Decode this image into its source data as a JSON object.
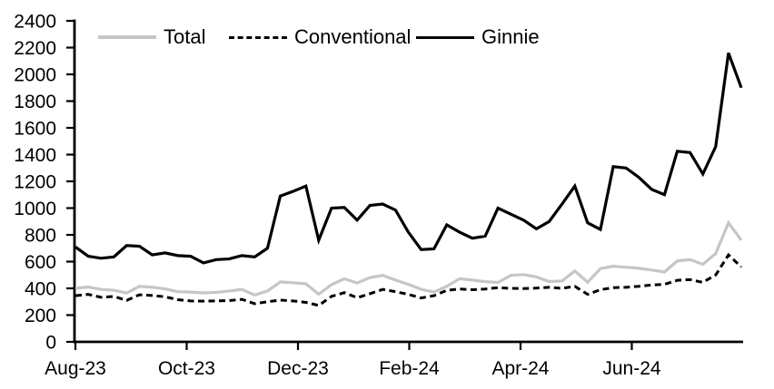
{
  "chart_data": {
    "type": "line",
    "title": "",
    "x_unit": "week",
    "grid": false,
    "legend_position": "top",
    "colors": {
      "gray_series": "#c6c6c6",
      "black_series": "#000000",
      "axis": "#000000",
      "background": "#ffffff"
    },
    "y_axis": {
      "min": 0,
      "max": 2400,
      "step": 200,
      "tick_labels": [
        "0",
        "200",
        "400",
        "600",
        "800",
        "1000",
        "1200",
        "1400",
        "1600",
        "1800",
        "2000",
        "2200",
        "2400"
      ]
    },
    "x_axis": {
      "ticks": [
        {
          "label": "Aug-23",
          "pos": 0
        },
        {
          "label": "Oct-23",
          "pos": 8.69
        },
        {
          "label": "Dec-23",
          "pos": 17.38
        },
        {
          "label": "Feb-24",
          "pos": 26.07
        },
        {
          "label": "Apr-24",
          "pos": 34.76
        },
        {
          "label": "Jun-24",
          "pos": 43.45
        }
      ],
      "points_span": [
        0,
        52
      ]
    },
    "series": [
      {
        "name": "Total",
        "color": "#c6c6c6",
        "style": "solid",
        "values": [
          400,
          410,
          392,
          386,
          365,
          415,
          408,
          396,
          375,
          372,
          366,
          370,
          380,
          392,
          350,
          380,
          448,
          442,
          434,
          356,
          428,
          472,
          440,
          480,
          497,
          462,
          430,
          393,
          372,
          415,
          472,
          462,
          450,
          444,
          497,
          503,
          485,
          451,
          455,
          530,
          445,
          548,
          565,
          558,
          550,
          537,
          522,
          605,
          615,
          580,
          660,
          890,
          760
        ]
      },
      {
        "name": "Conventional",
        "color": "#000000",
        "style": "dashed",
        "values": [
          345,
          355,
          333,
          340,
          310,
          352,
          347,
          337,
          315,
          306,
          304,
          306,
          308,
          318,
          285,
          300,
          312,
          306,
          295,
          272,
          340,
          368,
          330,
          360,
          392,
          375,
          355,
          328,
          345,
          385,
          395,
          390,
          395,
          405,
          400,
          398,
          402,
          408,
          400,
          415,
          355,
          390,
          405,
          408,
          415,
          425,
          430,
          460,
          465,
          445,
          500,
          650,
          560
        ]
      },
      {
        "name": "Ginnie",
        "color": "#000000",
        "style": "solid",
        "values": [
          710,
          640,
          625,
          635,
          720,
          715,
          650,
          665,
          645,
          640,
          590,
          615,
          620,
          645,
          635,
          700,
          1090,
          1125,
          1165,
          760,
          1000,
          1005,
          910,
          1020,
          1030,
          985,
          820,
          690,
          695,
          875,
          820,
          775,
          790,
          1000,
          955,
          910,
          845,
          900,
          1030,
          1165,
          890,
          840,
          1310,
          1300,
          1230,
          1140,
          1100,
          1425,
          1415,
          1255,
          1460,
          2160,
          1900
        ]
      }
    ]
  }
}
